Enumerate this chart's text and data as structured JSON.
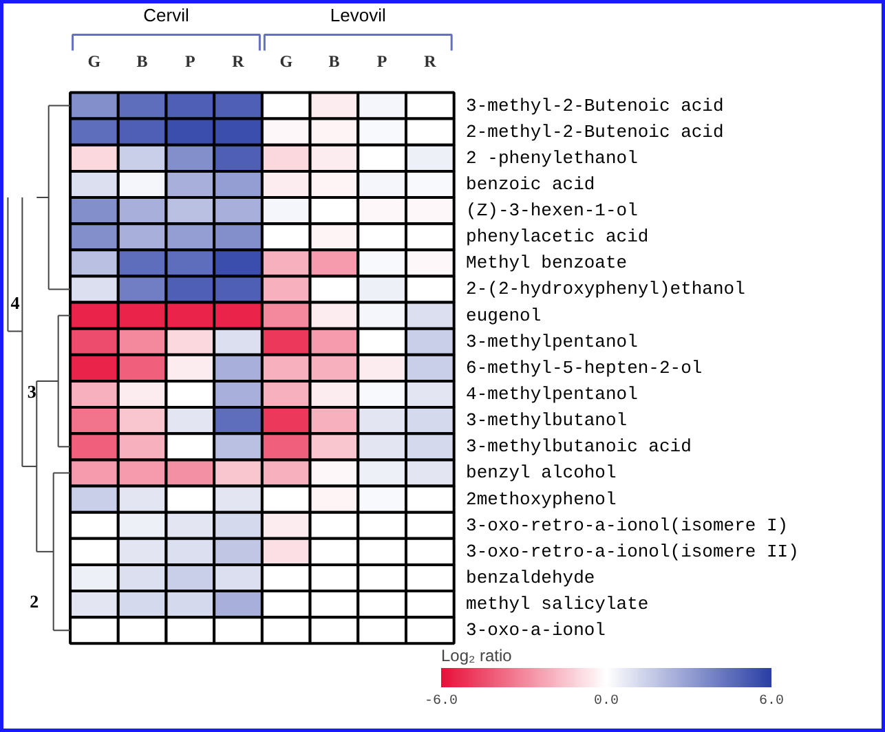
{
  "chart_data": {
    "type": "heatmap",
    "categories": [
      "G",
      "B",
      "P",
      "R",
      "G",
      "B",
      "P",
      "R"
    ],
    "y_categories": [
      "3-methyl-2-Butenoic acid",
      "2-methyl-2-Butenoic acid",
      "2 -phenylethanol",
      "benzoic acid",
      "(Z)-3-hexen-1-ol",
      "phenylacetic acid",
      "Methyl benzoate",
      "2-(2-hydroxyphenyl)ethanol",
      "eugenol",
      "3-methylpentanol",
      "6-methyl-5-hepten-2-ol",
      "4-methylpentanol",
      "3-methylbutanol",
      "3-methylbutanoic acid",
      "benzyl alcohol",
      "2methoxyphenol",
      "3-oxo-retro-a-ionol(isomere I)",
      "3-oxo-retro-a-ionol(isomere II)",
      "benzaldehyde",
      "methyl salicylate",
      "3-oxo-a-ionol"
    ],
    "cells": [
      [
        3.5,
        4.5,
        5,
        5,
        0,
        -0.5,
        0.3,
        0
      ],
      [
        4.5,
        5,
        5.5,
        5.5,
        -0.2,
        -0.3,
        0.2,
        0
      ],
      [
        -1,
        1.5,
        3.5,
        5,
        -1,
        -0.5,
        0,
        0.5
      ],
      [
        1,
        0.3,
        2.5,
        3,
        -0.5,
        -0.3,
        0.3,
        0.2
      ],
      [
        3.5,
        2.5,
        2,
        2.5,
        0.3,
        0,
        -0.2,
        -0.2
      ],
      [
        3.5,
        2.5,
        3,
        3.5,
        0,
        -0.3,
        0,
        0
      ],
      [
        2,
        4.5,
        4.5,
        5.5,
        -2,
        -2.5,
        0.2,
        -0.2
      ],
      [
        1,
        4,
        5,
        5,
        -2,
        0,
        0.5,
        0
      ],
      [
        -5.5,
        -5.5,
        -5.5,
        -5.5,
        -3,
        -0.5,
        0.3,
        1
      ],
      [
        -4.5,
        -3,
        -1,
        1,
        -5,
        -2.5,
        0,
        1.5
      ],
      [
        -5.5,
        -4,
        -0.5,
        2.5,
        -2,
        -2,
        -0.5,
        1.5
      ],
      [
        -2,
        -0.5,
        0,
        2.5,
        -2,
        -0.5,
        0.2,
        0.8
      ],
      [
        -3.5,
        -1.5,
        0.8,
        4.5,
        -5,
        -2,
        0.8,
        1.2
      ],
      [
        -4,
        -2,
        0,
        2,
        -4,
        -1.5,
        0.8,
        1.2
      ],
      [
        -2.5,
        -2.5,
        -2.8,
        -1.5,
        -2,
        -0.2,
        0.5,
        0.8
      ],
      [
        1.5,
        0.8,
        0,
        0.8,
        0,
        -0.3,
        0.2,
        0
      ],
      [
        0,
        0.5,
        0.8,
        1.2,
        -0.5,
        0,
        0,
        0
      ],
      [
        0,
        0.8,
        1,
        1.8,
        -0.8,
        0,
        0,
        0
      ],
      [
        0.5,
        1,
        1.5,
        1,
        0,
        0,
        0,
        0
      ],
      [
        0.8,
        1.2,
        1.2,
        2.5,
        0,
        0,
        0,
        0
      ],
      [
        0,
        0,
        0,
        0,
        0,
        0,
        0,
        0
      ]
    ],
    "clim": [
      -6,
      6
    ],
    "cticks": [
      {
        "value": -6,
        "label": "-6.0"
      },
      {
        "value": 0,
        "label": "0.0"
      },
      {
        "value": 6,
        "label": "6.0"
      }
    ],
    "clabel": "Log₂ ratio",
    "annotations": [
      "Cervil",
      "Levovil",
      "4",
      "3",
      "2"
    ]
  }
}
